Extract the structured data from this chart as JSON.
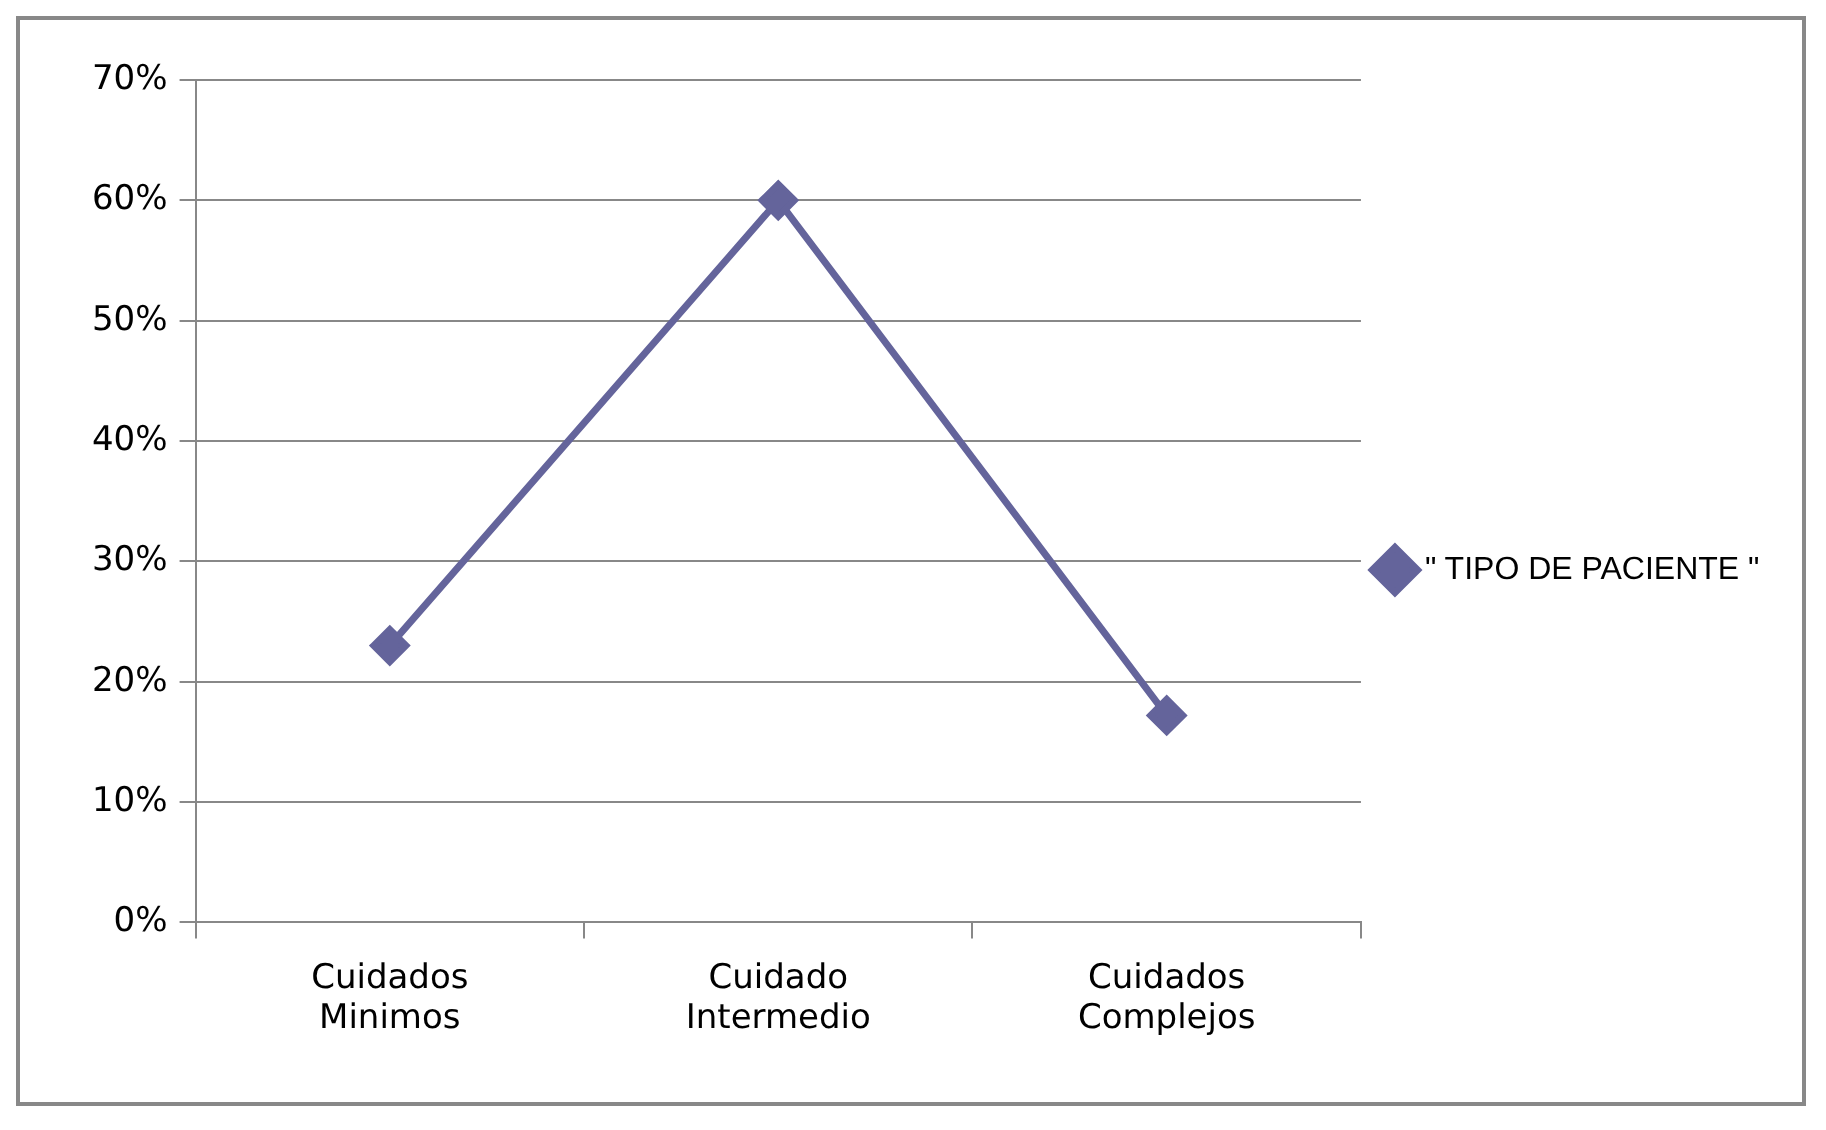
{
  "chart_data": {
    "type": "line",
    "categories": [
      "Cuidados Minimos",
      "Cuidado Intermedio",
      "Cuidados Complejos"
    ],
    "series": [
      {
        "name": "\" TIPO DE PACIENTE \"",
        "color": "#64649b",
        "values": [
          23,
          60,
          17.2
        ]
      }
    ],
    "ylim": [
      0,
      70
    ],
    "yticks": [
      {
        "value": 0,
        "label": "0%"
      },
      {
        "value": 10,
        "label": "10%"
      },
      {
        "value": 20,
        "label": "20%"
      },
      {
        "value": 30,
        "label": "30%"
      },
      {
        "value": 40,
        "label": "40%"
      },
      {
        "value": 50,
        "label": "50%"
      },
      {
        "value": 60,
        "label": "60%"
      },
      {
        "value": 70,
        "label": "70%"
      }
    ],
    "grid": "y",
    "legend": "right",
    "marker": "diamond",
    "line_style": "solid"
  }
}
